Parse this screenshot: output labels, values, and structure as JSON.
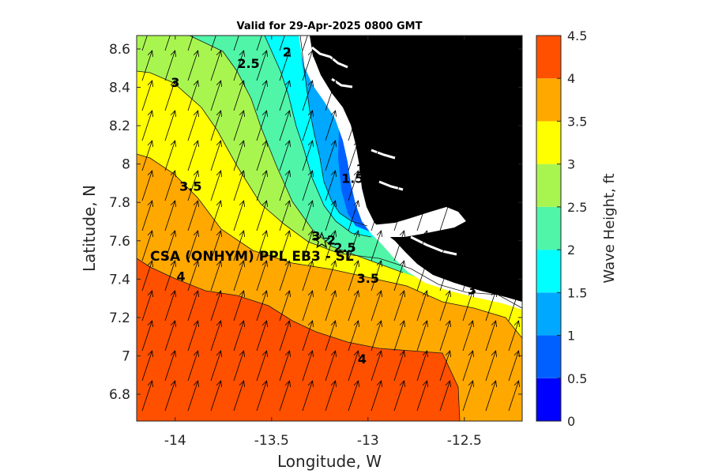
{
  "chart_data": {
    "type": "heatmap",
    "subtype": "filled contour map with wave-direction vectors",
    "title": "Valid for 29-Apr-2025 0800 GMT",
    "xlabel": "Longitude, W",
    "ylabel": "Latitude, N",
    "xlim": [
      -14.2,
      -12.2
    ],
    "ylim": [
      6.66,
      8.67
    ],
    "xticks": [
      -14,
      -13.5,
      -13,
      -12.5
    ],
    "xtick_labels": [
      "-14",
      "-13.5",
      "-13",
      "-12.5"
    ],
    "yticks": [
      6.8,
      7.0,
      7.2,
      7.4,
      7.6,
      7.8,
      8.0,
      8.2,
      8.4,
      8.6
    ],
    "ytick_labels": [
      "6.8",
      "7",
      "7.2",
      "7.4",
      "7.6",
      "7.8",
      "8",
      "8.2",
      "8.4",
      "8.6"
    ],
    "grid": false,
    "colorbar": {
      "label": "Wave Height, ft",
      "levels": [
        0,
        0.5,
        1,
        1.5,
        2,
        2.5,
        3,
        3.5,
        4,
        4.5
      ],
      "tick_labels": [
        "0",
        "0.5",
        "1",
        "1.5",
        "2",
        "2.5",
        "3",
        "3.5",
        "4",
        "4.5"
      ],
      "colors": [
        "#0000ff",
        "#0060ff",
        "#00a8ff",
        "#00ffff",
        "#50f5a8",
        "#a8f550",
        "#ffff00",
        "#ffa800",
        "#ff5000"
      ]
    },
    "land_color": "#000000",
    "contour_labels": [
      {
        "text": "2.5",
        "lon": -13.62,
        "lat": 8.52
      },
      {
        "text": "2",
        "lon": -13.42,
        "lat": 8.58
      },
      {
        "text": "3",
        "lon": -14.0,
        "lat": 8.42
      },
      {
        "text": "1",
        "lon": -13.04,
        "lat": 7.97
      },
      {
        "text": "1.5",
        "lon": -13.08,
        "lat": 7.92
      },
      {
        "text": "3.5",
        "lon": -13.92,
        "lat": 7.88
      },
      {
        "text": "3",
        "lon": -13.27,
        "lat": 7.62
      },
      {
        "text": "2",
        "lon": -13.19,
        "lat": 7.6
      },
      {
        "text": "2.5",
        "lon": -13.12,
        "lat": 7.56
      },
      {
        "text": "4",
        "lon": -13.97,
        "lat": 7.41
      },
      {
        "text": "3.5",
        "lon": -13.0,
        "lat": 7.4
      },
      {
        "text": "3",
        "lon": -12.46,
        "lat": 7.34
      },
      {
        "text": "4",
        "lon": -13.03,
        "lat": 6.98
      }
    ],
    "site": {
      "name": "CSA (ONHYM) PPL EB3 - SL",
      "lon": -13.24,
      "lat": 7.6
    }
  }
}
